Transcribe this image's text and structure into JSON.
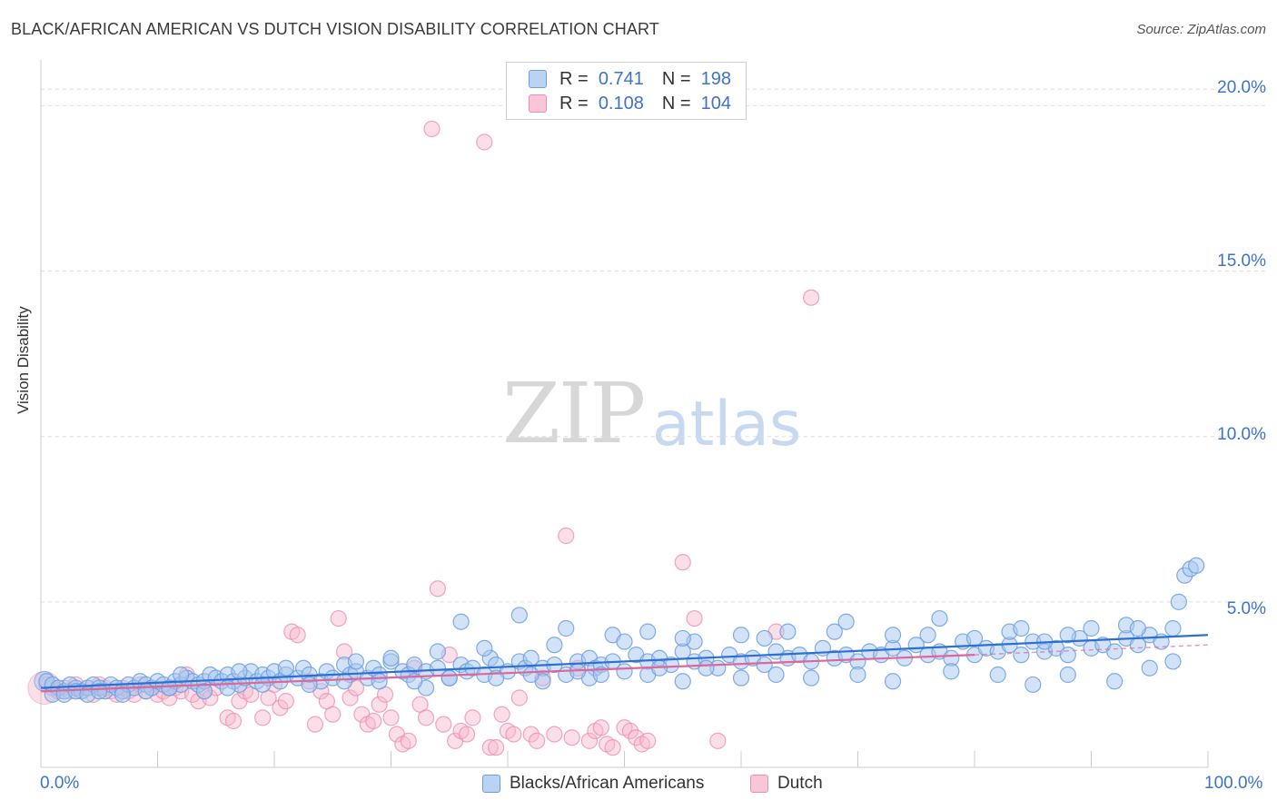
{
  "title": "BLACK/AFRICAN AMERICAN VS DUTCH VISION DISABILITY CORRELATION CHART",
  "source": "Source: ZipAtlas.com",
  "watermark": {
    "zip": "ZIP",
    "atlas": "atlas"
  },
  "legend": {
    "row1": {
      "r_label": "R =",
      "r_value": "0.741",
      "n_label": "N =",
      "n_value": "198"
    },
    "row2": {
      "r_label": "R =",
      "r_value": "0.108",
      "n_label": "N =",
      "n_value": "104"
    }
  },
  "colors": {
    "blue_fill": "#a8c8f0",
    "blue_stroke": "#6b9ee0",
    "blue_line": "#2e6fd1",
    "pink_fill": "#f7b8cb",
    "pink_stroke": "#ee8fae",
    "pink_line": "#e0659a",
    "grid": "#dddddd",
    "accent_text": "#3d73c9"
  },
  "chart_data": {
    "type": "scatter",
    "title": "BLACK/AFRICAN AMERICAN VS DUTCH VISION DISABILITY CORRELATION CHART",
    "xlabel": "",
    "ylabel": "Vision Disability",
    "xlim": [
      0,
      100
    ],
    "ylim": [
      0,
      21
    ],
    "x_tick_labels": [
      "0.0%",
      "100.0%"
    ],
    "y_ticks": [
      5,
      10,
      15,
      20
    ],
    "y_tick_labels": [
      "5.0%",
      "10.0%",
      "15.0%",
      "20.0%"
    ],
    "grid": true,
    "legend_position": "top-center",
    "series": [
      {
        "name": "Blacks/African Americans",
        "color": "#a8c8f0",
        "r": 0.741,
        "n": 198,
        "trend": {
          "x": [
            0,
            100
          ],
          "y": [
            2.4,
            4.0
          ]
        },
        "points": [
          [
            0.5,
            2.6
          ],
          [
            1,
            2.5
          ],
          [
            1.5,
            2.4
          ],
          [
            2,
            2.3
          ],
          [
            2.5,
            2.5
          ],
          [
            3,
            2.4
          ],
          [
            3.5,
            2.3
          ],
          [
            4,
            2.4
          ],
          [
            4.5,
            2.5
          ],
          [
            5,
            2.4
          ],
          [
            5.5,
            2.3
          ],
          [
            6,
            2.5
          ],
          [
            6.5,
            2.4
          ],
          [
            7,
            2.3
          ],
          [
            7.5,
            2.5
          ],
          [
            8,
            2.4
          ],
          [
            8.5,
            2.6
          ],
          [
            9,
            2.5
          ],
          [
            9.5,
            2.4
          ],
          [
            10,
            2.6
          ],
          [
            10.5,
            2.5
          ],
          [
            11,
            2.4
          ],
          [
            11.5,
            2.6
          ],
          [
            12,
            2.5
          ],
          [
            12.5,
            2.7
          ],
          [
            13,
            2.6
          ],
          [
            13.5,
            2.5
          ],
          [
            14,
            2.6
          ],
          [
            14.5,
            2.8
          ],
          [
            15,
            2.7
          ],
          [
            15.5,
            2.6
          ],
          [
            16,
            2.8
          ],
          [
            16.5,
            2.6
          ],
          [
            17,
            2.5
          ],
          [
            17.5,
            2.7
          ],
          [
            18,
            2.9
          ],
          [
            18.5,
            2.6
          ],
          [
            19,
            2.8
          ],
          [
            19.5,
            2.7
          ],
          [
            20,
            2.9
          ],
          [
            20.5,
            2.6
          ],
          [
            21,
            2.8
          ],
          [
            22,
            2.7
          ],
          [
            22.5,
            3.0
          ],
          [
            23,
            2.8
          ],
          [
            24,
            2.6
          ],
          [
            24.5,
            2.9
          ],
          [
            25,
            2.7
          ],
          [
            26,
            3.1
          ],
          [
            26.5,
            2.8
          ],
          [
            27,
            2.9
          ],
          [
            28,
            2.7
          ],
          [
            28.5,
            3.0
          ],
          [
            29,
            2.8
          ],
          [
            30,
            3.2
          ],
          [
            31,
            2.9
          ],
          [
            31.5,
            2.8
          ],
          [
            32,
            3.1
          ],
          [
            33,
            2.9
          ],
          [
            34,
            3.0
          ],
          [
            35,
            2.7
          ],
          [
            36,
            3.1
          ],
          [
            36.5,
            2.9
          ],
          [
            37,
            3.0
          ],
          [
            38,
            2.8
          ],
          [
            38.5,
            3.3
          ],
          [
            39,
            3.1
          ],
          [
            40,
            2.9
          ],
          [
            41,
            3.2
          ],
          [
            41.5,
            3.0
          ],
          [
            42,
            3.3
          ],
          [
            43,
            3.0
          ],
          [
            44,
            3.1
          ],
          [
            45,
            2.8
          ],
          [
            46,
            3.2
          ],
          [
            47,
            3.3
          ],
          [
            47.5,
            3.0
          ],
          [
            48,
            3.1
          ],
          [
            49,
            3.2
          ],
          [
            50,
            2.9
          ],
          [
            51,
            3.4
          ],
          [
            52,
            3.2
          ],
          [
            53,
            3.3
          ],
          [
            54,
            3.1
          ],
          [
            55,
            3.5
          ],
          [
            56,
            3.2
          ],
          [
            57,
            3.3
          ],
          [
            58,
            3.0
          ],
          [
            59,
            3.4
          ],
          [
            60,
            3.2
          ],
          [
            61,
            3.3
          ],
          [
            62,
            3.1
          ],
          [
            63,
            3.5
          ],
          [
            64,
            3.3
          ],
          [
            65,
            3.4
          ],
          [
            66,
            3.2
          ],
          [
            67,
            3.6
          ],
          [
            68,
            3.3
          ],
          [
            69,
            3.4
          ],
          [
            70,
            3.2
          ],
          [
            71,
            3.5
          ],
          [
            72,
            3.4
          ],
          [
            73,
            3.6
          ],
          [
            74,
            3.3
          ],
          [
            75,
            3.7
          ],
          [
            76,
            3.4
          ],
          [
            77,
            3.5
          ],
          [
            78,
            3.3
          ],
          [
            79,
            3.8
          ],
          [
            80,
            3.4
          ],
          [
            81,
            3.6
          ],
          [
            82,
            3.5
          ],
          [
            83,
            3.7
          ],
          [
            84,
            3.4
          ],
          [
            85,
            3.8
          ],
          [
            86,
            3.5
          ],
          [
            87,
            3.6
          ],
          [
            88,
            3.4
          ],
          [
            89,
            3.9
          ],
          [
            90,
            3.6
          ],
          [
            91,
            3.7
          ],
          [
            92,
            3.5
          ],
          [
            93,
            3.9
          ],
          [
            94,
            3.7
          ],
          [
            95,
            4.0
          ],
          [
            96,
            3.8
          ],
          [
            97,
            4.2
          ],
          [
            36,
            4.4
          ],
          [
            41,
            4.6
          ],
          [
            45,
            4.2
          ],
          [
            49,
            4.0
          ],
          [
            52,
            4.1
          ],
          [
            56,
            3.8
          ],
          [
            60,
            4.0
          ],
          [
            64,
            4.1
          ],
          [
            69,
            4.4
          ],
          [
            73,
            4.0
          ],
          [
            77,
            4.5
          ],
          [
            80,
            3.9
          ],
          [
            83,
            4.1
          ],
          [
            86,
            3.8
          ],
          [
            90,
            4.2
          ],
          [
            93,
            4.3
          ],
          [
            97,
            3.2
          ],
          [
            97.5,
            5.0
          ],
          [
            98,
            5.8
          ],
          [
            98.5,
            6.0
          ],
          [
            99,
            6.1
          ],
          [
            33,
            2.4
          ],
          [
            43,
            2.6
          ],
          [
            47,
            2.7
          ],
          [
            52,
            2.8
          ],
          [
            55,
            2.6
          ],
          [
            60,
            2.7
          ],
          [
            63,
            2.8
          ],
          [
            66,
            2.7
          ],
          [
            70,
            2.8
          ],
          [
            73,
            2.6
          ],
          [
            78,
            2.9
          ],
          [
            82,
            2.8
          ],
          [
            85,
            2.5
          ],
          [
            88,
            2.8
          ],
          [
            92,
            2.6
          ],
          [
            95,
            3.0
          ],
          [
            12,
            2.8
          ],
          [
            17,
            2.9
          ],
          [
            21,
            3.0
          ],
          [
            27,
            3.2
          ],
          [
            30,
            3.3
          ],
          [
            34,
            3.5
          ],
          [
            38,
            3.6
          ],
          [
            44,
            3.7
          ],
          [
            50,
            3.8
          ],
          [
            55,
            3.9
          ],
          [
            62,
            3.9
          ],
          [
            68,
            4.1
          ],
          [
            76,
            4.0
          ],
          [
            84,
            4.2
          ],
          [
            88,
            4.0
          ],
          [
            94,
            4.2
          ],
          [
            1,
            2.2
          ],
          [
            2,
            2.2
          ],
          [
            3,
            2.3
          ],
          [
            4,
            2.2
          ],
          [
            5,
            2.3
          ],
          [
            7,
            2.2
          ],
          [
            9,
            2.3
          ],
          [
            11,
            2.4
          ],
          [
            14,
            2.3
          ],
          [
            16,
            2.4
          ],
          [
            19,
            2.5
          ],
          [
            23,
            2.5
          ],
          [
            26,
            2.6
          ],
          [
            29,
            2.6
          ],
          [
            32,
            2.6
          ],
          [
            35,
            2.7
          ],
          [
            39,
            2.7
          ],
          [
            42,
            2.8
          ],
          [
            46,
            2.9
          ],
          [
            48,
            2.8
          ],
          [
            53,
            3.0
          ],
          [
            57,
            3.0
          ]
        ]
      },
      {
        "name": "Dutch",
        "color": "#f7b8cb",
        "r": 0.108,
        "n": 104,
        "trend": {
          "x": [
            0,
            80
          ],
          "y": [
            2.3,
            3.4
          ]
        },
        "dashed_extension": {
          "x": [
            80,
            100
          ],
          "y": [
            3.4,
            3.7
          ]
        },
        "points": [
          [
            0.5,
            2.5
          ],
          [
            1,
            2.4
          ],
          [
            1.5,
            2.3
          ],
          [
            2,
            2.4
          ],
          [
            2.5,
            2.3
          ],
          [
            3,
            2.5
          ],
          [
            3.5,
            2.3
          ],
          [
            4,
            2.4
          ],
          [
            4.5,
            2.2
          ],
          [
            5,
            2.5
          ],
          [
            5.5,
            2.4
          ],
          [
            6,
            2.3
          ],
          [
            6.5,
            2.2
          ],
          [
            7,
            2.4
          ],
          [
            7.5,
            2.3
          ],
          [
            8,
            2.2
          ],
          [
            8.5,
            2.5
          ],
          [
            9,
            2.3
          ],
          [
            9.5,
            2.4
          ],
          [
            10,
            2.2
          ],
          [
            10.5,
            2.3
          ],
          [
            11,
            2.1
          ],
          [
            11.5,
            2.4
          ],
          [
            12,
            2.3
          ],
          [
            12.5,
            2.8
          ],
          [
            13,
            2.2
          ],
          [
            13.5,
            2.0
          ],
          [
            14,
            2.3
          ],
          [
            14.5,
            2.1
          ],
          [
            15,
            2.4
          ],
          [
            16,
            1.5
          ],
          [
            16.5,
            1.4
          ],
          [
            17,
            2.0
          ],
          [
            17.5,
            2.3
          ],
          [
            18,
            2.2
          ],
          [
            19,
            1.5
          ],
          [
            19.5,
            2.1
          ],
          [
            20,
            2.5
          ],
          [
            20.5,
            1.8
          ],
          [
            21,
            2.0
          ],
          [
            21.5,
            4.1
          ],
          [
            22,
            4.0
          ],
          [
            23,
            2.6
          ],
          [
            23.5,
            1.3
          ],
          [
            24,
            2.3
          ],
          [
            24.5,
            2.0
          ],
          [
            25,
            1.6
          ],
          [
            25.5,
            4.5
          ],
          [
            26,
            3.5
          ],
          [
            26.5,
            2.1
          ],
          [
            27,
            2.4
          ],
          [
            27.5,
            1.6
          ],
          [
            28,
            1.3
          ],
          [
            28.5,
            1.4
          ],
          [
            29,
            1.9
          ],
          [
            29.5,
            2.2
          ],
          [
            30,
            1.5
          ],
          [
            30.5,
            1.0
          ],
          [
            31,
            0.7
          ],
          [
            31.5,
            0.8
          ],
          [
            32,
            3.0
          ],
          [
            32.5,
            1.9
          ],
          [
            33,
            1.5
          ],
          [
            33.5,
            19.3
          ],
          [
            34,
            5.4
          ],
          [
            34.5,
            1.3
          ],
          [
            35,
            3.4
          ],
          [
            35.5,
            0.8
          ],
          [
            36,
            1.1
          ],
          [
            36.5,
            1.0
          ],
          [
            37,
            1.5
          ],
          [
            38,
            18.9
          ],
          [
            38.5,
            0.6
          ],
          [
            39,
            0.6
          ],
          [
            39.5,
            1.6
          ],
          [
            40,
            1.1
          ],
          [
            40.5,
            1.0
          ],
          [
            41,
            2.1
          ],
          [
            42,
            1.0
          ],
          [
            42.5,
            0.8
          ],
          [
            43,
            2.7
          ],
          [
            44,
            1.0
          ],
          [
            45,
            7.0
          ],
          [
            45.5,
            0.9
          ],
          [
            46,
            3.0
          ],
          [
            47,
            0.8
          ],
          [
            47.5,
            1.1
          ],
          [
            48,
            1.2
          ],
          [
            48.5,
            0.7
          ],
          [
            49,
            0.6
          ],
          [
            50,
            1.2
          ],
          [
            50.5,
            1.1
          ],
          [
            51,
            0.9
          ],
          [
            51.5,
            0.7
          ],
          [
            52,
            0.8
          ],
          [
            55,
            6.2
          ],
          [
            56,
            4.5
          ],
          [
            58,
            0.8
          ],
          [
            63,
            4.1
          ],
          [
            66,
            14.2
          ]
        ]
      }
    ]
  },
  "bottom_legend": {
    "series1": "Blacks/African Americans",
    "series2": "Dutch"
  }
}
